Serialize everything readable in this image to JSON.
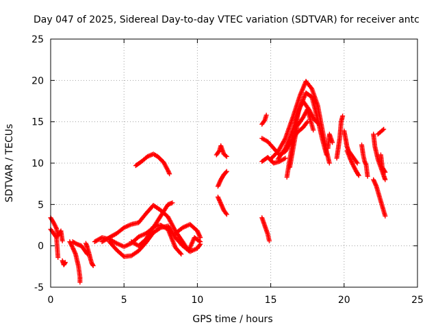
{
  "chart_data": {
    "type": "scatter",
    "title": "Day 047 of 2025, Sidereal Day-to-day VTEC variation (SDTVAR) for receiver antc",
    "xlabel": "GPS time / hours",
    "ylabel": "SDTVAR / TECUs",
    "xlim": [
      0,
      25
    ],
    "ylim": [
      -5,
      25
    ],
    "xticks": [
      0,
      5,
      10,
      15,
      20,
      25
    ],
    "yticks": [
      -5,
      0,
      5,
      10,
      15,
      20,
      25
    ],
    "grid": true,
    "marker": "+",
    "color": "#ff0000",
    "tracks": [
      {
        "name": "early-1",
        "points": [
          [
            0.0,
            3.4
          ],
          [
            0.2,
            2.8
          ],
          [
            0.4,
            2.1
          ],
          [
            0.5,
            1.2
          ],
          [
            0.7,
            1.8
          ],
          [
            0.8,
            0.6
          ]
        ]
      },
      {
        "name": "early-2",
        "points": [
          [
            0.0,
            2.0
          ],
          [
            0.2,
            1.5
          ],
          [
            0.4,
            1.0
          ],
          [
            0.5,
            -1.4
          ]
        ]
      },
      {
        "name": "early-3",
        "points": [
          [
            0.8,
            -1.8
          ],
          [
            0.9,
            -2.3
          ],
          [
            1.0,
            -2.0
          ]
        ]
      },
      {
        "name": "early-4",
        "points": [
          [
            1.3,
            0.5
          ],
          [
            1.5,
            -0.2
          ],
          [
            1.7,
            -1.0
          ],
          [
            1.9,
            -2.5
          ],
          [
            2.0,
            -3.8
          ],
          [
            2.0,
            -4.4
          ]
        ]
      },
      {
        "name": "early-5",
        "points": [
          [
            1.5,
            0.5
          ],
          [
            1.8,
            0.2
          ],
          [
            2.1,
            0.0
          ],
          [
            2.3,
            -0.5
          ],
          [
            2.5,
            -1.0
          ]
        ]
      },
      {
        "name": "early-6",
        "points": [
          [
            2.4,
            0.3
          ],
          [
            2.5,
            -0.2
          ],
          [
            2.6,
            -0.8
          ],
          [
            2.7,
            -1.5
          ],
          [
            2.8,
            -2.1
          ],
          [
            2.9,
            -2.4
          ]
        ]
      },
      {
        "name": "mid-upper",
        "points": [
          [
            3.5,
            0.5
          ],
          [
            4.0,
            1.0
          ],
          [
            4.5,
            1.5
          ],
          [
            5.0,
            2.2
          ],
          [
            5.5,
            2.6
          ],
          [
            6.0,
            2.8
          ],
          [
            6.5,
            3.9
          ],
          [
            7.0,
            4.9
          ],
          [
            7.5,
            4.3
          ],
          [
            8.0,
            3.5
          ],
          [
            8.5,
            1.8
          ],
          [
            9.0,
            0.5
          ],
          [
            9.4,
            -0.6
          ],
          [
            9.8,
            1.0
          ],
          [
            10.2,
            0.5
          ]
        ]
      },
      {
        "name": "mid-middle",
        "points": [
          [
            3.0,
            0.5
          ],
          [
            3.5,
            1.0
          ],
          [
            4.0,
            0.8
          ],
          [
            4.5,
            0.3
          ],
          [
            5.0,
            -0.1
          ],
          [
            5.5,
            0.3
          ],
          [
            6.0,
            1.1
          ],
          [
            6.5,
            1.5
          ],
          [
            7.0,
            2.2
          ],
          [
            7.5,
            3.6
          ],
          [
            8.0,
            5.0
          ],
          [
            8.3,
            5.2
          ]
        ]
      },
      {
        "name": "mid-lower",
        "points": [
          [
            4.0,
            0.5
          ],
          [
            4.5,
            -0.5
          ],
          [
            5.0,
            -1.3
          ],
          [
            5.5,
            -1.2
          ],
          [
            6.0,
            -0.6
          ],
          [
            6.5,
            0.4
          ],
          [
            7.0,
            1.6
          ],
          [
            7.5,
            2.2
          ],
          [
            8.0,
            2.4
          ],
          [
            8.5,
            1.0
          ],
          [
            9.0,
            0.0
          ],
          [
            9.5,
            -0.7
          ],
          [
            10.0,
            -0.3
          ],
          [
            10.2,
            0.2
          ]
        ]
      },
      {
        "name": "mid-fourth",
        "points": [
          [
            5.5,
            0.5
          ],
          [
            6.0,
            0.0
          ],
          [
            6.5,
            0.8
          ],
          [
            7.0,
            2.3
          ],
          [
            7.5,
            2.5
          ],
          [
            8.0,
            2.0
          ],
          [
            8.5,
            -0.2
          ],
          [
            8.9,
            -1.0
          ]
        ]
      },
      {
        "name": "late-right",
        "points": [
          [
            8.5,
            1.5
          ],
          [
            9.0,
            2.2
          ],
          [
            9.5,
            2.6
          ],
          [
            10.0,
            1.8
          ],
          [
            10.2,
            1.0
          ]
        ]
      },
      {
        "name": "arc-1",
        "points": [
          [
            5.8,
            9.7
          ],
          [
            6.2,
            10.2
          ],
          [
            6.6,
            10.8
          ],
          [
            7.0,
            11.1
          ],
          [
            7.3,
            10.8
          ],
          [
            7.7,
            10.1
          ],
          [
            8.0,
            9.1
          ],
          [
            8.1,
            8.7
          ]
        ]
      },
      {
        "name": "seg-11a",
        "points": [
          [
            11.3,
            11.0
          ],
          [
            11.5,
            11.5
          ],
          [
            11.6,
            12.1
          ],
          [
            11.8,
            11.1
          ],
          [
            12.0,
            10.8
          ]
        ]
      },
      {
        "name": "seg-11b",
        "points": [
          [
            11.4,
            7.2
          ],
          [
            11.6,
            8.0
          ],
          [
            11.8,
            8.6
          ],
          [
            12.0,
            9.0
          ]
        ]
      },
      {
        "name": "seg-11c",
        "points": [
          [
            11.4,
            5.9
          ],
          [
            11.6,
            5.1
          ],
          [
            11.8,
            4.3
          ],
          [
            12.0,
            3.8
          ]
        ]
      },
      {
        "name": "seg-14a",
        "points": [
          [
            14.4,
            3.4
          ],
          [
            14.6,
            2.4
          ],
          [
            14.8,
            1.4
          ],
          [
            14.9,
            0.6
          ]
        ]
      },
      {
        "name": "seg-14b",
        "points": [
          [
            14.4,
            14.7
          ],
          [
            14.6,
            15.2
          ],
          [
            14.7,
            15.8
          ]
        ]
      },
      {
        "name": "seg-14c",
        "points": [
          [
            14.4,
            13.0
          ],
          [
            14.8,
            12.6
          ],
          [
            15.2,
            11.8
          ],
          [
            15.6,
            11.0
          ],
          [
            16.0,
            11.4
          ],
          [
            16.4,
            12.6
          ],
          [
            16.8,
            13.7
          ],
          [
            17.2,
            14.3
          ],
          [
            17.5,
            15.0
          ]
        ]
      },
      {
        "name": "seg-14d",
        "points": [
          [
            14.4,
            10.2
          ],
          [
            14.8,
            10.7
          ],
          [
            15.2,
            10.0
          ],
          [
            15.6,
            10.2
          ],
          [
            16.0,
            10.6
          ]
        ]
      },
      {
        "name": "peak-1",
        "points": [
          [
            15.0,
            10.5
          ],
          [
            15.5,
            11.4
          ],
          [
            16.0,
            13.0
          ],
          [
            16.5,
            15.5
          ],
          [
            17.0,
            18.2
          ],
          [
            17.4,
            19.9
          ],
          [
            17.8,
            19.0
          ],
          [
            18.2,
            17.0
          ],
          [
            18.5,
            14.2
          ],
          [
            18.8,
            11.5
          ],
          [
            19.0,
            10.0
          ]
        ]
      },
      {
        "name": "peak-2",
        "points": [
          [
            15.5,
            10.5
          ],
          [
            16.0,
            11.8
          ],
          [
            16.5,
            14.0
          ],
          [
            17.0,
            16.8
          ],
          [
            17.4,
            18.5
          ],
          [
            17.8,
            18.0
          ],
          [
            18.2,
            15.3
          ],
          [
            18.5,
            13.0
          ],
          [
            18.8,
            11.0
          ]
        ]
      },
      {
        "name": "peak-3",
        "points": [
          [
            16.1,
            8.3
          ],
          [
            16.3,
            10.5
          ],
          [
            16.6,
            13.5
          ],
          [
            16.9,
            16.4
          ],
          [
            17.2,
            17.5
          ],
          [
            17.6,
            16.5
          ],
          [
            18.0,
            15.2
          ],
          [
            18.3,
            14.7
          ]
        ]
      },
      {
        "name": "peak-4",
        "points": [
          [
            16.3,
            9.5
          ],
          [
            16.5,
            11.5
          ],
          [
            16.8,
            14.5
          ],
          [
            17.2,
            15.5
          ],
          [
            17.5,
            16.5
          ],
          [
            17.9,
            14.0
          ]
        ]
      },
      {
        "name": "seg-18a",
        "points": [
          [
            18.9,
            11.8
          ],
          [
            19.0,
            13.5
          ],
          [
            19.2,
            12.5
          ]
        ]
      },
      {
        "name": "seg-19",
        "points": [
          [
            19.5,
            10.6
          ],
          [
            19.6,
            11.8
          ],
          [
            19.7,
            13.0
          ],
          [
            19.8,
            15.0
          ],
          [
            19.9,
            15.7
          ]
        ]
      },
      {
        "name": "seg-20a",
        "points": [
          [
            20.0,
            13.9
          ],
          [
            20.1,
            13.0
          ],
          [
            20.2,
            12.0
          ],
          [
            20.3,
            11.5
          ],
          [
            20.5,
            11.0
          ],
          [
            20.7,
            10.5
          ],
          [
            20.9,
            10.0
          ]
        ]
      },
      {
        "name": "seg-20b",
        "points": [
          [
            20.2,
            11.5
          ],
          [
            20.4,
            10.6
          ],
          [
            20.6,
            9.8
          ],
          [
            20.8,
            9.1
          ],
          [
            21.0,
            8.5
          ]
        ]
      },
      {
        "name": "seg-21",
        "points": [
          [
            21.2,
            12.2
          ],
          [
            21.3,
            11.0
          ],
          [
            21.4,
            10.2
          ],
          [
            21.5,
            9.8
          ],
          [
            21.6,
            8.4
          ]
        ]
      },
      {
        "name": "seg-22a",
        "points": [
          [
            22.0,
            13.5
          ],
          [
            22.1,
            12.0
          ],
          [
            22.3,
            10.5
          ],
          [
            22.5,
            9.5
          ],
          [
            22.7,
            8.5
          ],
          [
            22.8,
            8.0
          ]
        ]
      },
      {
        "name": "seg-22b",
        "points": [
          [
            22.0,
            8.0
          ],
          [
            22.2,
            7.2
          ],
          [
            22.4,
            6.0
          ],
          [
            22.6,
            4.8
          ],
          [
            22.8,
            3.6
          ]
        ]
      },
      {
        "name": "seg-22c",
        "points": [
          [
            22.3,
            13.5
          ],
          [
            22.5,
            13.8
          ],
          [
            22.7,
            14.1
          ]
        ]
      },
      {
        "name": "seg-22d",
        "points": [
          [
            22.5,
            11.0
          ],
          [
            22.6,
            9.5
          ],
          [
            22.8,
            8.9
          ]
        ]
      }
    ]
  }
}
